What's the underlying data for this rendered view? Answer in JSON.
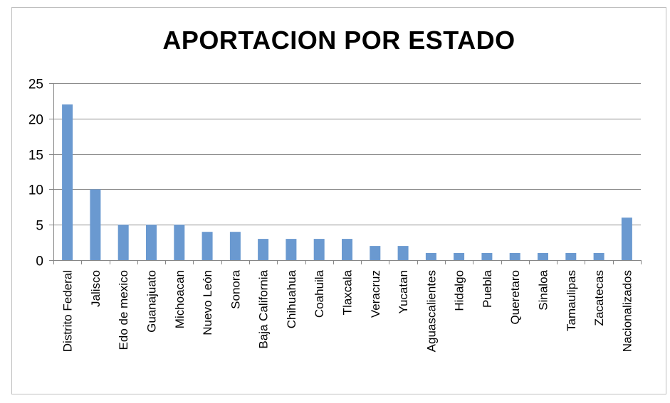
{
  "chart_data": {
    "type": "bar",
    "title": "APORTACION POR ESTADO",
    "xlabel": "",
    "ylabel": "",
    "ylim": [
      0,
      25
    ],
    "yticks": [
      0,
      5,
      10,
      15,
      20,
      25
    ],
    "grid": true,
    "legend": "none",
    "categories": [
      "Distrito Federal",
      "Jalisco",
      "Edo de mexico",
      "Guanajuato",
      "Michoacan",
      "Nuevo León",
      "Sonora",
      "Baja California",
      "Chihuahua",
      "Coahuila",
      "Tlaxcala",
      "Veracruz",
      "Yucatan",
      "Aguascalientes",
      "Hidalgo",
      "Puebla",
      "Queretaro",
      "Sinaloa",
      "Tamaulipas",
      "Zacatecas",
      "Nacionalizados"
    ],
    "values": [
      22,
      10,
      5,
      5,
      5,
      4,
      4,
      3,
      3,
      3,
      3,
      2,
      2,
      1,
      1,
      1,
      1,
      1,
      1,
      1,
      6
    ],
    "bar_color": "#6a99d0",
    "grid_color": "#8c8c8c",
    "axis_color": "#868686"
  }
}
